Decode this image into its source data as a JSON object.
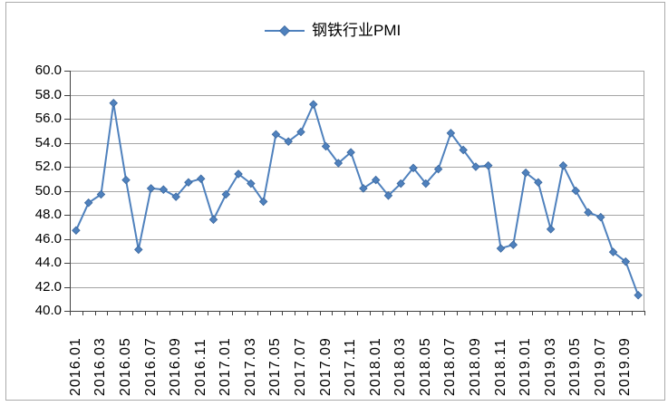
{
  "legend": {
    "label": "钢铁行业PMI"
  },
  "colors": {
    "series": "#4f81bd",
    "marker_fill": "#4f81bd",
    "marker_stroke": "#3a679e",
    "gridline": "#a4a4a4",
    "axis": "#404040",
    "text": "#000000",
    "frame_border": "#ababab",
    "background": "#ffffff"
  },
  "y_axis": {
    "min": 40,
    "max": 60,
    "step": 2,
    "tick_labels": [
      "60.0",
      "58.0",
      "56.0",
      "54.0",
      "52.0",
      "50.0",
      "48.0",
      "46.0",
      "44.0",
      "42.0",
      "40.0"
    ]
  },
  "x_axis": {
    "label_every": 2
  },
  "chart_data": {
    "type": "line",
    "title": "",
    "legend": [
      "钢铁行业PMI"
    ],
    "legend_position": "top-center",
    "marker": "diamond",
    "grid": "horizontal",
    "ylim": [
      40,
      60
    ],
    "x": [
      "2016.01",
      "2016.02",
      "2016.03",
      "2016.04",
      "2016.05",
      "2016.06",
      "2016.07",
      "2016.08",
      "2016.09",
      "2016.10",
      "2016.11",
      "2016.12",
      "2017.01",
      "2017.02",
      "2017.03",
      "2017.04",
      "2017.05",
      "2017.06",
      "2017.07",
      "2017.08",
      "2017.09",
      "2017.10",
      "2017.11",
      "2017.12",
      "2018.01",
      "2018.02",
      "2018.03",
      "2018.04",
      "2018.05",
      "2018.06",
      "2018.07",
      "2018.08",
      "2018.09",
      "2018.10",
      "2018.11",
      "2018.12",
      "2019.01",
      "2019.02",
      "2019.03",
      "2019.04",
      "2019.05",
      "2019.06",
      "2019.07",
      "2019.08",
      "2019.09",
      "2019.10"
    ],
    "values": [
      46.7,
      49.0,
      49.7,
      57.3,
      50.9,
      45.1,
      50.2,
      50.1,
      49.5,
      50.7,
      51.0,
      47.6,
      49.7,
      51.4,
      50.6,
      49.1,
      54.7,
      54.1,
      54.9,
      57.2,
      53.7,
      52.3,
      53.2,
      50.2,
      50.9,
      49.6,
      50.6,
      51.9,
      50.6,
      51.8,
      54.8,
      53.4,
      52.0,
      52.1,
      45.2,
      45.5,
      51.5,
      50.7,
      46.8,
      52.1,
      50.0,
      48.2,
      47.8,
      44.9,
      44.1,
      41.3
    ]
  }
}
